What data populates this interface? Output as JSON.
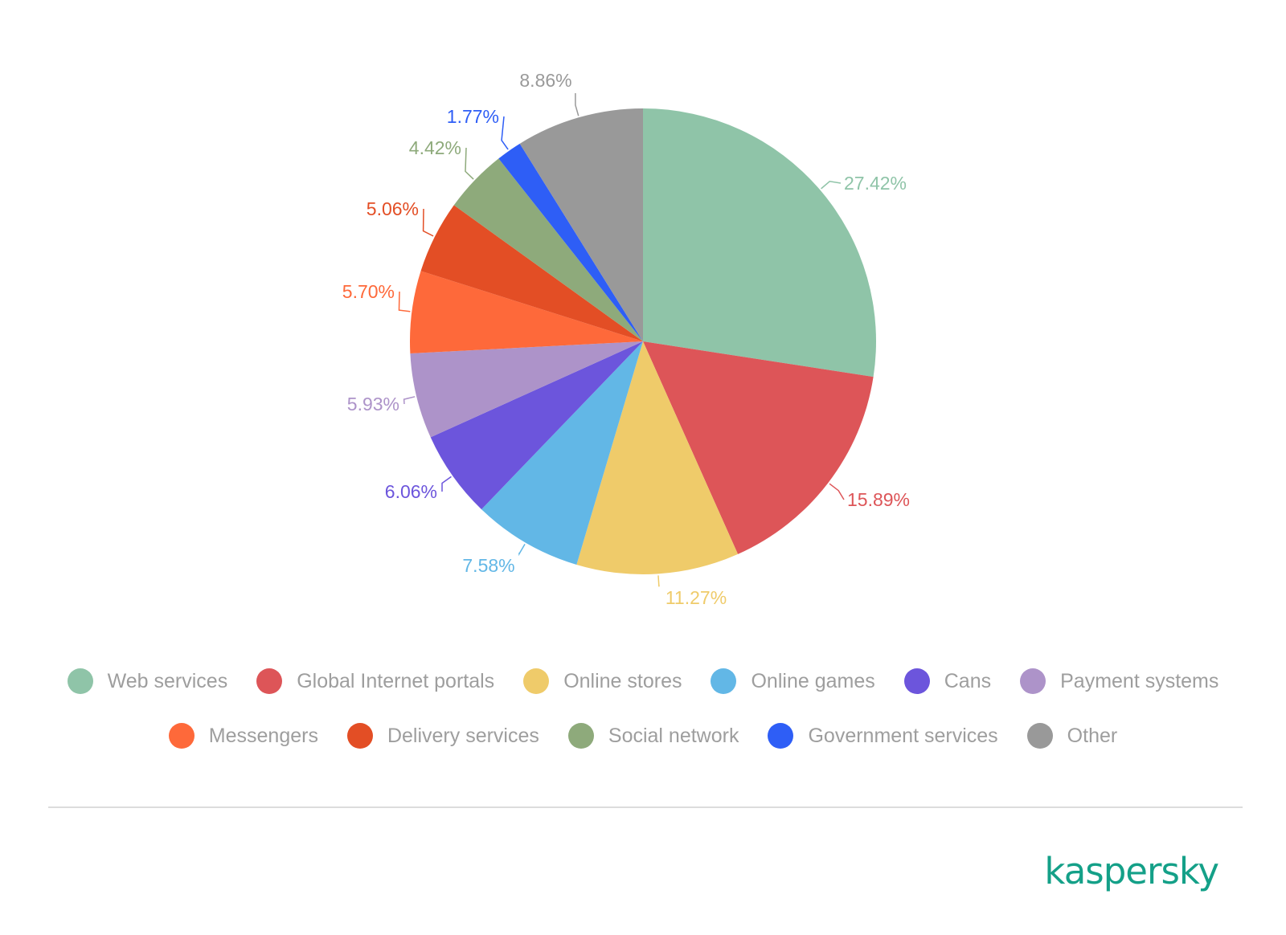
{
  "chart_data": {
    "type": "pie",
    "slices": [
      {
        "name": "Web services",
        "value": 27.42,
        "label": "27.42%",
        "color": "#8fc4a8"
      },
      {
        "name": "Global Internet portals",
        "value": 15.89,
        "label": "15.89%",
        "color": "#dd5558"
      },
      {
        "name": "Online stores",
        "value": 11.27,
        "label": "11.27%",
        "color": "#efcb6a"
      },
      {
        "name": "Online games",
        "value": 7.58,
        "label": "7.58%",
        "color": "#62b7e6"
      },
      {
        "name": "Cans",
        "value": 6.06,
        "label": "6.06%",
        "color": "#6c55dc"
      },
      {
        "name": "Payment systems",
        "value": 5.93,
        "label": "5.93%",
        "color": "#ad93c9"
      },
      {
        "name": "Messengers",
        "value": 5.7,
        "label": "5.70%",
        "color": "#fe693a"
      },
      {
        "name": "Delivery services",
        "value": 5.06,
        "label": "5.06%",
        "color": "#e34e25"
      },
      {
        "name": "Social network",
        "value": 4.42,
        "label": "4.42%",
        "color": "#8eaa7b"
      },
      {
        "name": "Government services",
        "value": 1.77,
        "label": "1.77%",
        "color": "#2e5ef6"
      },
      {
        "name": "Other",
        "value": 8.86,
        "label": "8.86%",
        "color": "#999999"
      }
    ],
    "start": "12 o'clock",
    "direction": "clockwise",
    "legend_position": "bottom"
  },
  "brand": {
    "name": "kaspersky",
    "color": "#14a088"
  }
}
